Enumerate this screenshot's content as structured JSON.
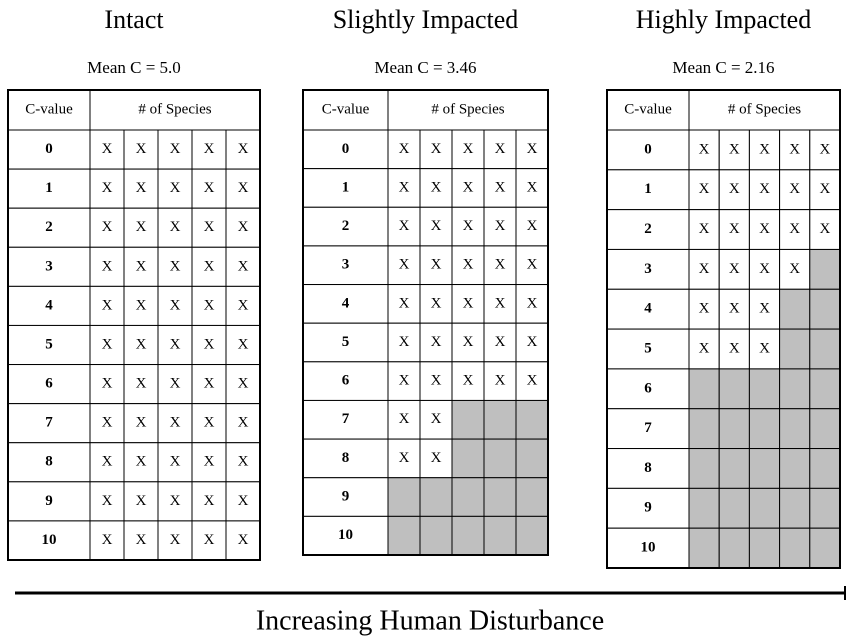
{
  "panels": [
    {
      "title": "Intact",
      "subtitle": "Mean C = 5.0",
      "header": [
        "C-value",
        "# of Species"
      ],
      "rows": [
        {
          "c": "0",
          "cells": [
            "X",
            "X",
            "X",
            "X",
            "X"
          ]
        },
        {
          "c": "1",
          "cells": [
            "X",
            "X",
            "X",
            "X",
            "X"
          ]
        },
        {
          "c": "2",
          "cells": [
            "X",
            "X",
            "X",
            "X",
            "X"
          ]
        },
        {
          "c": "3",
          "cells": [
            "X",
            "X",
            "X",
            "X",
            "X"
          ]
        },
        {
          "c": "4",
          "cells": [
            "X",
            "X",
            "X",
            "X",
            "X"
          ]
        },
        {
          "c": "5",
          "cells": [
            "X",
            "X",
            "X",
            "X",
            "X"
          ]
        },
        {
          "c": "6",
          "cells": [
            "X",
            "X",
            "X",
            "X",
            "X"
          ]
        },
        {
          "c": "7",
          "cells": [
            "X",
            "X",
            "X",
            "X",
            "X"
          ]
        },
        {
          "c": "8",
          "cells": [
            "X",
            "X",
            "X",
            "X",
            "X"
          ]
        },
        {
          "c": "9",
          "cells": [
            "X",
            "X",
            "X",
            "X",
            "X"
          ]
        },
        {
          "c": "10",
          "cells": [
            "X",
            "X",
            "X",
            "X",
            "X"
          ]
        }
      ]
    },
    {
      "title": "Slightly Impacted",
      "subtitle": "Mean C = 3.46",
      "header": [
        "C-value",
        "# of Species"
      ],
      "rows": [
        {
          "c": "0",
          "cells": [
            "X",
            "X",
            "X",
            "X",
            "X"
          ]
        },
        {
          "c": "1",
          "cells": [
            "X",
            "X",
            "X",
            "X",
            "X"
          ]
        },
        {
          "c": "2",
          "cells": [
            "X",
            "X",
            "X",
            "X",
            "X"
          ]
        },
        {
          "c": "3",
          "cells": [
            "X",
            "X",
            "X",
            "X",
            "X"
          ]
        },
        {
          "c": "4",
          "cells": [
            "X",
            "X",
            "X",
            "X",
            "X"
          ]
        },
        {
          "c": "5",
          "cells": [
            "X",
            "X",
            "X",
            "X",
            "X"
          ]
        },
        {
          "c": "6",
          "cells": [
            "X",
            "X",
            "X",
            "X",
            "X"
          ]
        },
        {
          "c": "7",
          "cells": [
            "X",
            "X",
            null,
            null,
            null
          ]
        },
        {
          "c": "8",
          "cells": [
            "X",
            "X",
            null,
            null,
            null
          ]
        },
        {
          "c": "9",
          "cells": [
            null,
            null,
            null,
            null,
            null
          ]
        },
        {
          "c": "10",
          "cells": [
            null,
            null,
            null,
            null,
            null
          ]
        }
      ]
    },
    {
      "title": "Highly Impacted",
      "subtitle": "Mean C = 2.16",
      "header": [
        "C-value",
        "# of Species"
      ],
      "rows": [
        {
          "c": "0",
          "cells": [
            "X",
            "X",
            "X",
            "X",
            "X"
          ]
        },
        {
          "c": "1",
          "cells": [
            "X",
            "X",
            "X",
            "X",
            "X"
          ]
        },
        {
          "c": "2",
          "cells": [
            "X",
            "X",
            "X",
            "X",
            "X"
          ]
        },
        {
          "c": "3",
          "cells": [
            "X",
            "X",
            "X",
            "X",
            null
          ]
        },
        {
          "c": "4",
          "cells": [
            "X",
            "X",
            "X",
            null,
            null
          ]
        },
        {
          "c": "5",
          "cells": [
            "X",
            "X",
            "X",
            null,
            null
          ]
        },
        {
          "c": "6",
          "cells": [
            null,
            null,
            null,
            null,
            null
          ]
        },
        {
          "c": "7",
          "cells": [
            null,
            null,
            null,
            null,
            null
          ]
        },
        {
          "c": "8",
          "cells": [
            null,
            null,
            null,
            null,
            null
          ]
        },
        {
          "c": "9",
          "cells": [
            null,
            null,
            null,
            null,
            null
          ]
        },
        {
          "c": "10",
          "cells": [
            null,
            null,
            null,
            null,
            null
          ]
        }
      ]
    }
  ],
  "footer": "Increasing Human Disturbance"
}
